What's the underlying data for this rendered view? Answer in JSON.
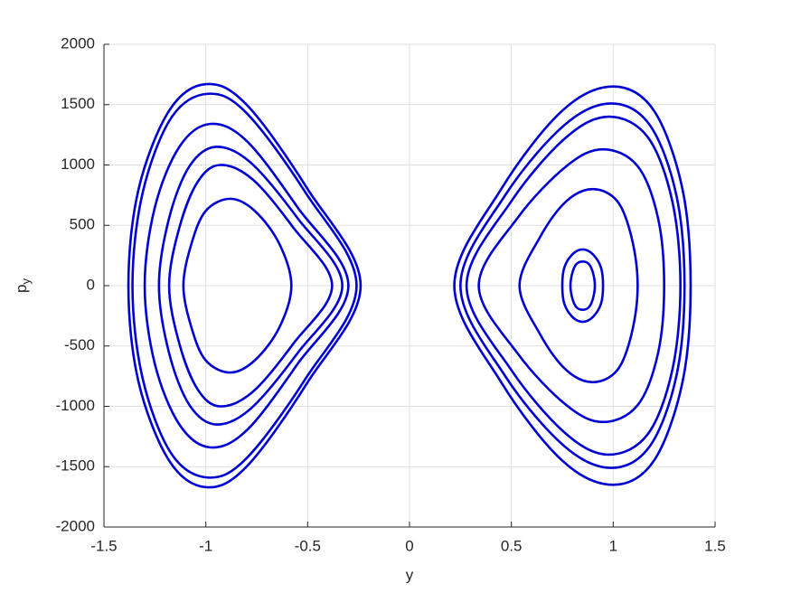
{
  "chart_data": {
    "type": "line",
    "xlabel": "y",
    "ylabel": "p",
    "ylabel_sub": "y",
    "xlim": [
      -1.5,
      1.5
    ],
    "xticks": [
      -1.5,
      -1,
      -0.5,
      0,
      0.5,
      1,
      1.5
    ],
    "ylim": [
      -2000,
      2000
    ],
    "yticks": [
      -2000,
      -1500,
      -1000,
      -500,
      0,
      500,
      1000,
      1500,
      2000
    ],
    "grid": true,
    "closed": true,
    "series": [
      {
        "color": "#0000d4",
        "x": [
          -1.38,
          -1.33,
          -1.18,
          -1.0,
          -0.8,
          -0.5,
          -0.24,
          -0.5,
          -0.8,
          -1.0,
          -1.18,
          -1.33
        ],
        "values": [
          0,
          800,
          1450,
          1670,
          1500,
          800,
          0,
          -800,
          -1500,
          -1670,
          -1450,
          -800
        ]
      },
      {
        "color": "#0000d4",
        "x": [
          -1.36,
          -1.31,
          -1.17,
          -0.99,
          -0.8,
          -0.51,
          -0.26,
          -0.51,
          -0.8,
          -0.99,
          -1.17,
          -1.31
        ],
        "values": [
          0,
          770,
          1390,
          1590,
          1430,
          770,
          0,
          -770,
          -1430,
          -1590,
          -1390,
          -770
        ]
      },
      {
        "color": "#0000d4",
        "x": [
          -1.3,
          -1.25,
          -1.13,
          -0.98,
          -0.8,
          -0.55,
          -0.3,
          -0.55,
          -0.8,
          -0.98,
          -1.13,
          -1.25
        ],
        "values": [
          0,
          650,
          1150,
          1340,
          1200,
          650,
          0,
          -650,
          -1200,
          -1340,
          -1150,
          -650
        ]
      },
      {
        "color": "#0000d4",
        "x": [
          -1.23,
          -1.18,
          -1.08,
          -0.95,
          -0.78,
          -0.55,
          -0.33,
          -0.55,
          -0.78,
          -0.95,
          -1.08,
          -1.18
        ],
        "values": [
          0,
          560,
          990,
          1150,
          1020,
          560,
          0,
          -560,
          -1020,
          -1150,
          -990,
          -560
        ]
      },
      {
        "color": "#0000d4",
        "x": [
          -1.18,
          -1.13,
          -1.04,
          -0.93,
          -0.77,
          -0.57,
          -0.38,
          -0.57,
          -0.77,
          -0.93,
          -1.04,
          -1.13
        ],
        "values": [
          0,
          480,
          860,
          1000,
          880,
          480,
          0,
          -480,
          -880,
          -1000,
          -860,
          -480
        ]
      },
      {
        "color": "#0000d4",
        "x": [
          -1.11,
          -1.07,
          -1.0,
          -0.88,
          -0.76,
          -0.64,
          -0.58,
          -0.64,
          -0.76,
          -0.88,
          -1.0,
          -1.07
        ],
        "values": [
          0,
          350,
          620,
          720,
          620,
          350,
          0,
          -350,
          -620,
          -720,
          -620,
          -350
        ]
      },
      {
        "color": "#0000d4",
        "x": [
          0.22,
          0.45,
          0.75,
          1.0,
          1.2,
          1.34,
          1.38,
          1.34,
          1.2,
          1.0,
          0.75,
          0.45
        ],
        "values": [
          0,
          800,
          1450,
          1650,
          1450,
          800,
          0,
          -800,
          -1450,
          -1650,
          -1450,
          -800
        ]
      },
      {
        "color": "#0000d4",
        "x": [
          0.25,
          0.47,
          0.76,
          0.99,
          1.18,
          1.31,
          1.35,
          1.31,
          1.18,
          0.99,
          0.76,
          0.47
        ],
        "values": [
          0,
          750,
          1330,
          1510,
          1330,
          750,
          0,
          -750,
          -1330,
          -1510,
          -1330,
          -750
        ]
      },
      {
        "color": "#0000d4",
        "x": [
          0.28,
          0.5,
          0.77,
          0.98,
          1.17,
          1.29,
          1.33,
          1.29,
          1.17,
          0.98,
          0.77,
          0.5
        ],
        "values": [
          0,
          700,
          1230,
          1400,
          1230,
          700,
          0,
          -700,
          -1230,
          -1400,
          -1230,
          -700
        ]
      },
      {
        "color": "#0000d4",
        "x": [
          0.34,
          0.53,
          0.77,
          0.95,
          1.12,
          1.22,
          1.25,
          1.22,
          1.12,
          0.95,
          0.77,
          0.53
        ],
        "values": [
          0,
          560,
          990,
          1130,
          990,
          560,
          0,
          -560,
          -990,
          -1130,
          -990,
          -560
        ]
      },
      {
        "color": "#0000d4",
        "x": [
          0.54,
          0.64,
          0.77,
          0.9,
          1.02,
          1.09,
          1.12,
          1.09,
          1.02,
          0.9,
          0.77,
          0.64
        ],
        "values": [
          0,
          400,
          700,
          800,
          700,
          400,
          0,
          -400,
          -700,
          -800,
          -700,
          -400
        ]
      },
      {
        "color": "#0000d4",
        "x": [
          0.75,
          0.76,
          0.8,
          0.85,
          0.9,
          0.94,
          0.95,
          0.94,
          0.9,
          0.85,
          0.8,
          0.76
        ],
        "values": [
          0,
          150,
          260,
          300,
          260,
          150,
          0,
          -150,
          -260,
          -300,
          -260,
          -150
        ]
      },
      {
        "color": "#0000d4",
        "x": [
          0.79,
          0.8,
          0.82,
          0.85,
          0.88,
          0.9,
          0.91,
          0.9,
          0.88,
          0.85,
          0.82,
          0.8
        ],
        "values": [
          0,
          110,
          180,
          200,
          180,
          110,
          0,
          -110,
          -180,
          -200,
          -180,
          -110
        ]
      }
    ]
  }
}
